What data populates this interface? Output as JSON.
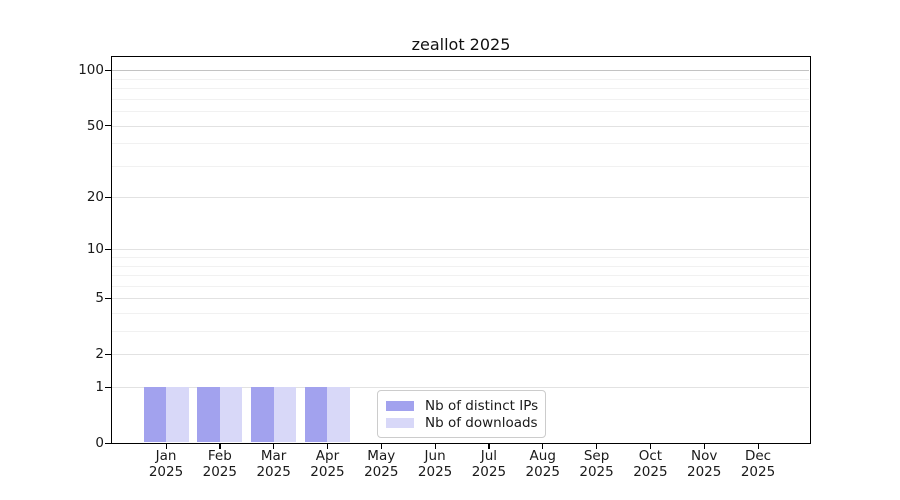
{
  "title": "zeallot 2025",
  "colors": {
    "bar_distinct_ips": "#a2a2ee",
    "bar_downloads": "#d8d8f8",
    "frame": "#000000",
    "grid_minor": "#f1f1f1",
    "grid_major": "#e2e2e2",
    "grid_top_major": "#c3c3c3",
    "text": "#1a1a1a",
    "legend_border": "#cccccc"
  },
  "legend": {
    "items": [
      {
        "label": "Nb of distinct IPs",
        "color": "#a2a2ee"
      },
      {
        "label": "Nb of downloads",
        "color": "#d8d8f8"
      }
    ]
  },
  "chart_data": {
    "type": "bar",
    "title": "zeallot 2025",
    "categories": [
      "Jan 2025",
      "Feb 2025",
      "Mar 2025",
      "Apr 2025",
      "May 2025",
      "Jun 2025",
      "Jul 2025",
      "Aug 2025",
      "Sep 2025",
      "Oct 2025",
      "Nov 2025",
      "Dec 2025"
    ],
    "x_months": [
      "Jan",
      "Feb",
      "Mar",
      "Apr",
      "May",
      "Jun",
      "Jul",
      "Aug",
      "Sep",
      "Oct",
      "Nov",
      "Dec"
    ],
    "x_year": "2025",
    "series": [
      {
        "name": "Nb of distinct IPs",
        "color": "#a2a2ee",
        "values": [
          1,
          1,
          1,
          1,
          0,
          0,
          0,
          0,
          0,
          0,
          0,
          0
        ]
      },
      {
        "name": "Nb of downloads",
        "color": "#d8d8f8",
        "values": [
          1,
          1,
          1,
          1,
          0,
          0,
          0,
          0,
          0,
          0,
          0,
          0
        ]
      }
    ],
    "yscale": "log1p",
    "ylim": [
      0,
      118
    ],
    "y_major_ticks": [
      0,
      1,
      2,
      5,
      10,
      20,
      50,
      100
    ],
    "y_minor_gridlines": [
      3,
      4,
      6,
      7,
      8,
      9,
      30,
      40,
      60,
      70,
      80,
      90
    ],
    "grid": "horizontal",
    "legend_position": "inside-bottom-center",
    "xlabel": "",
    "ylabel": ""
  }
}
